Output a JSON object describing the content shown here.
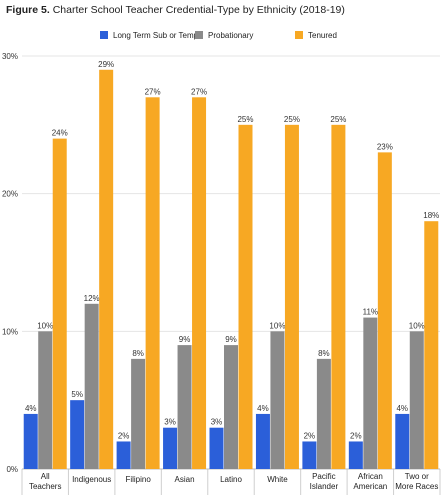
{
  "figure": {
    "label": "Figure 5.",
    "title": "Charter School Teacher Credential-Type by Ethnicity (2018-19)"
  },
  "chart_data": {
    "type": "bar",
    "categories": [
      [
        "All",
        "Teachers"
      ],
      [
        "Indigenous"
      ],
      [
        "Filipino"
      ],
      [
        "Asian"
      ],
      [
        "Latino"
      ],
      [
        "White"
      ],
      [
        "Pacific",
        "Islander"
      ],
      [
        "African",
        "American"
      ],
      [
        "Two or",
        "More Races"
      ]
    ],
    "series": [
      {
        "name": "Long Term Sub or Temp",
        "color": "#2b5fd9",
        "values": [
          4,
          5,
          2,
          3,
          3,
          4,
          2,
          2,
          4
        ]
      },
      {
        "name": "Probationary",
        "color": "#8a8a8a",
        "values": [
          10,
          12,
          8,
          9,
          9,
          10,
          8,
          11,
          10
        ]
      },
      {
        "name": "Tenured",
        "color": "#f7a823",
        "values": [
          24,
          29,
          27,
          27,
          25,
          25,
          25,
          23,
          18
        ]
      }
    ],
    "ylim": [
      0,
      30
    ],
    "yticks": [
      0,
      10,
      20,
      30
    ],
    "ytick_suffix": "%",
    "label_suffix": "%",
    "grid": true,
    "legend_position": "top"
  }
}
